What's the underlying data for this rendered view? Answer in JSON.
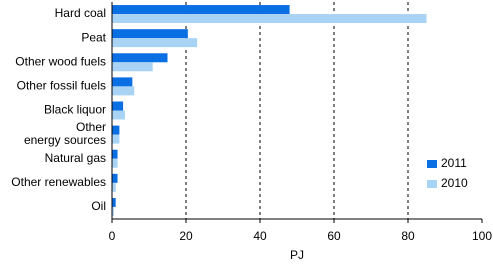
{
  "chart_data": {
    "type": "bar",
    "orientation": "horizontal",
    "categories": [
      "Hard coal",
      "Peat",
      "Other wood fuels",
      "Other fossil fuels",
      "Black liquor",
      "Other\nenergy sources",
      "Natural gas",
      "Other renewables",
      "Oil"
    ],
    "series": [
      {
        "name": "2011",
        "color": "#0a6fe3",
        "values": [
          48,
          20.5,
          15,
          5.5,
          3,
          2,
          1.5,
          1.5,
          1
        ]
      },
      {
        "name": "2010",
        "color": "#a9d3f5",
        "values": [
          85,
          23,
          11,
          6,
          3.5,
          2,
          1.5,
          1,
          0.5
        ]
      }
    ],
    "xlabel": "PJ",
    "xlim": [
      0,
      100
    ],
    "xticks": [
      0,
      20,
      40,
      60,
      80,
      100
    ],
    "grid": true,
    "legend": "lower right"
  }
}
